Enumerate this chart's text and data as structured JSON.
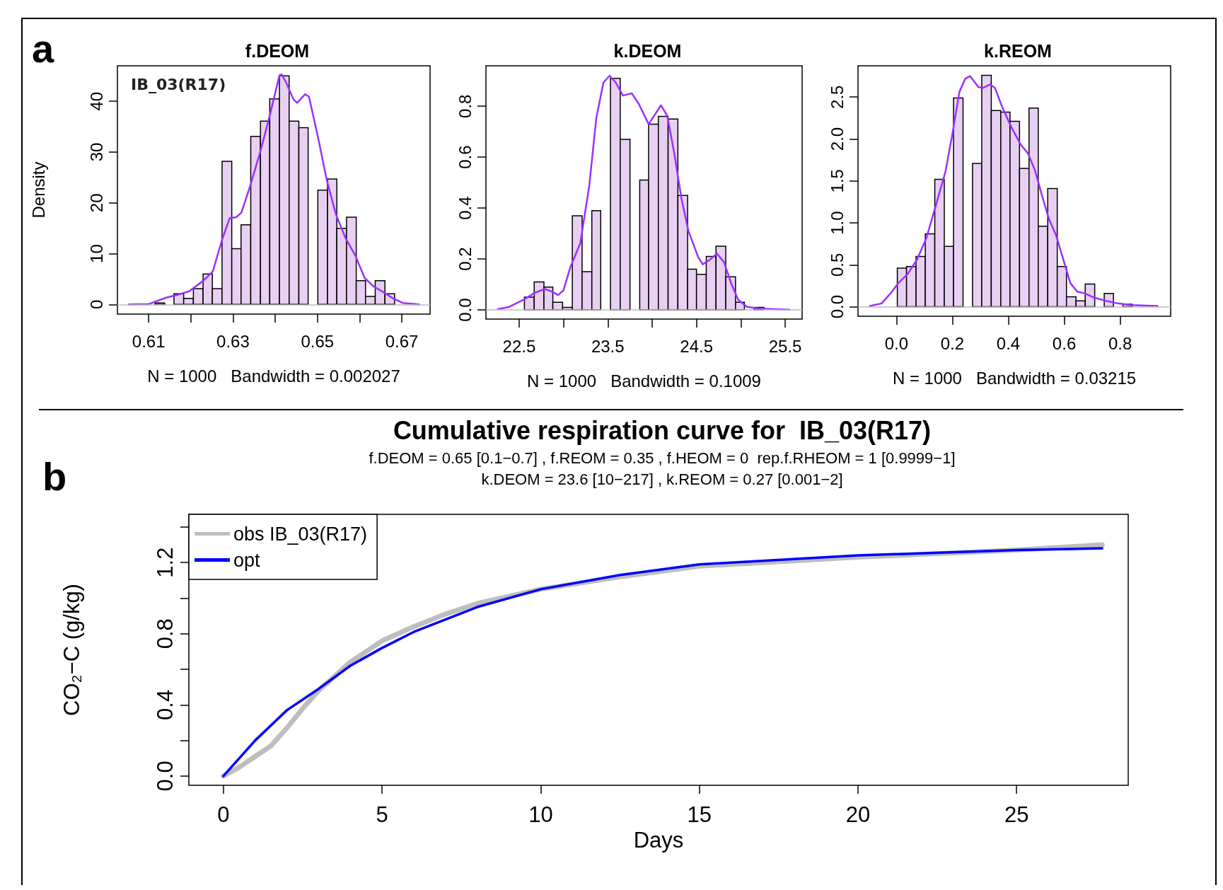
{
  "chart_data": [
    {
      "type": "histogram",
      "title": "f.DEOM",
      "xlabel": "N = 1000   Bandwidth = 0.002027",
      "ylabel": "Density",
      "annotations": [
        "a",
        "IB_03(R17)"
      ],
      "series": [
        {
          "type": "histogram",
          "color": "#e8d0f2",
          "bins": [
            0.6115,
            0.6138,
            0.616,
            0.6183,
            0.6206,
            0.6229,
            0.6251,
            0.6274,
            0.6297,
            0.6319,
            0.6342,
            0.6365,
            0.6387,
            0.641,
            0.6433,
            0.6456,
            0.6478,
            0.6501,
            0.6524,
            0.6546,
            0.6569,
            0.6592,
            0.6614,
            0.6637,
            0.666,
            0.6683
          ],
          "values": [
            0.3,
            0,
            2.1,
            1.2,
            3.1,
            6.0,
            3.1,
            28.2,
            11.0,
            15.7,
            33.1,
            36.1,
            40.5,
            45.0,
            36.1,
            34.8,
            null,
            22.5,
            24.7,
            15.0,
            17.2,
            4.7,
            1.6,
            4.7,
            2.1
          ]
        },
        {
          "type": "line",
          "color": "#9b30ff",
          "x": [
            0.6053,
            0.6101,
            0.614,
            0.6168,
            0.6196,
            0.623,
            0.6252,
            0.6275,
            0.6292,
            0.6308,
            0.632,
            0.6342,
            0.6365,
            0.6387,
            0.641,
            0.6415,
            0.6426,
            0.6443,
            0.6452,
            0.6471,
            0.648,
            0.65,
            0.6522,
            0.6544,
            0.6567,
            0.6589,
            0.6612,
            0.6634,
            0.6657,
            0.6679,
            0.6702,
            0.6741
          ],
          "values": [
            0,
            0.1,
            1.3,
            1.9,
            2.6,
            4.7,
            6.5,
            13.0,
            17.0,
            17.2,
            18.1,
            23.7,
            30.2,
            37.2,
            45.1,
            45.3,
            43.7,
            40.4,
            39.7,
            41.4,
            40.9,
            33.5,
            24.6,
            17.7,
            13.0,
            9.8,
            5.2,
            3.5,
            2.4,
            1.2,
            0.3,
            0
          ]
        }
      ],
      "xlim": [
        0.6026,
        0.6767
      ],
      "ylim": [
        -1.9,
        47.0
      ],
      "xticks": [
        0.61,
        {
          "value": 0.62,
          "label": null
        },
        0.63,
        {
          "value": 0.64,
          "label": null
        },
        0.65,
        {
          "value": 0.66,
          "label": null
        },
        0.67
      ],
      "yticks": [
        0,
        10,
        20,
        30,
        40
      ],
      "ref_lines": [
        {
          "axis": "y",
          "value": 0,
          "color": "#bebebe"
        }
      ],
      "marker": "none"
    },
    {
      "type": "histogram",
      "title": "k.DEOM",
      "xlabel": "N = 1000   Bandwidth = 0.1009",
      "series": [
        {
          "type": "histogram",
          "color": "#e8d0f2",
          "bins": [
            22.56,
            22.67,
            22.78,
            22.88,
            22.99,
            23.1,
            23.21,
            23.32,
            23.42,
            23.53,
            23.64,
            23.75,
            23.86,
            23.96,
            24.07,
            24.18,
            24.29,
            24.4,
            24.5,
            24.61,
            24.72,
            24.83,
            24.94,
            25.04,
            25.15,
            25.26
          ],
          "values": [
            0.05,
            0.11,
            0.09,
            0.03,
            0.01,
            0.37,
            0.15,
            0.39,
            null,
            0.91,
            0.67,
            null,
            0.51,
            0.73,
            0.76,
            0.75,
            0.45,
            0.16,
            0.14,
            0.21,
            0.25,
            0.13,
            0.03,
            0,
            0.01
          ]
        },
        {
          "type": "line",
          "color": "#9b30ff",
          "x": [
            22.26,
            22.39,
            22.55,
            22.68,
            22.79,
            22.87,
            22.94,
            23.0,
            23.08,
            23.19,
            23.29,
            23.37,
            23.45,
            23.52,
            23.59,
            23.67,
            23.77,
            23.85,
            23.96,
            24.04,
            24.1,
            24.17,
            24.25,
            24.33,
            24.41,
            24.52,
            24.57,
            24.65,
            24.73,
            24.81,
            24.89,
            24.97,
            25.07,
            25.21,
            25.55
          ],
          "values": [
            0.003,
            0.012,
            0.04,
            0.068,
            0.082,
            0.072,
            0.058,
            0.077,
            0.17,
            0.262,
            0.485,
            0.753,
            0.893,
            0.92,
            0.893,
            0.842,
            0.851,
            0.809,
            0.73,
            0.772,
            0.804,
            0.763,
            0.614,
            0.438,
            0.309,
            0.207,
            0.179,
            0.197,
            0.221,
            0.188,
            0.105,
            0.04,
            0.012,
            0.005,
            0.001
          ]
        }
      ],
      "xlim": [
        22.126,
        25.691
      ],
      "ylim": [
        -0.036,
        0.959
      ],
      "xticks": [
        22.5,
        {
          "value": 23.0,
          "label": null
        },
        23.5,
        {
          "value": 24.0,
          "label": null
        },
        24.5,
        {
          "value": 25.0,
          "label": null
        },
        25.5
      ],
      "yticks": [
        {
          "value": 0,
          "label": "0.0"
        },
        0.2,
        0.4,
        0.6,
        0.8
      ],
      "ref_lines": [
        {
          "axis": "y",
          "value": 0,
          "color": "#bebebe"
        }
      ],
      "marker": "none"
    },
    {
      "type": "histogram",
      "title": "k.REOM",
      "xlabel": "N = 1000   Bandwidth = 0.03215",
      "series": [
        {
          "type": "histogram",
          "color": "#e8d0f2",
          "bins": [
            0.003,
            0.036,
            0.07,
            0.103,
            0.137,
            0.171,
            0.204,
            0.238,
            0.272,
            0.305,
            0.339,
            0.373,
            0.406,
            0.44,
            0.474,
            0.507,
            0.541,
            0.575,
            0.608,
            0.642,
            0.675,
            0.709,
            0.743,
            0.776,
            0.81,
            0.843
          ],
          "values": [
            0.46,
            0.48,
            0.6,
            0.87,
            1.52,
            0.72,
            2.49,
            null,
            1.71,
            2.76,
            2.34,
            2.32,
            2.21,
            1.65,
            2.37,
            0.96,
            1.41,
            0.48,
            0.12,
            0.07,
            0.27,
            0,
            0.16,
            0,
            0.03
          ]
        },
        {
          "type": "line",
          "color": "#9b30ff",
          "x": [
            -0.095,
            -0.053,
            -0.019,
            0.006,
            0.04,
            0.073,
            0.107,
            0.141,
            0.175,
            0.2,
            0.225,
            0.246,
            0.263,
            0.293,
            0.31,
            0.335,
            0.352,
            0.377,
            0.411,
            0.445,
            0.47,
            0.495,
            0.521,
            0.546,
            0.571,
            0.597,
            0.622,
            0.647,
            0.673,
            0.706,
            0.749,
            0.791,
            0.841,
            0.934
          ],
          "values": [
            0.01,
            0.04,
            0.17,
            0.28,
            0.39,
            0.56,
            0.82,
            1.21,
            1.61,
            2.06,
            2.56,
            2.72,
            2.75,
            2.62,
            2.61,
            2.65,
            2.61,
            2.39,
            2.14,
            1.93,
            1.83,
            1.63,
            1.32,
            1.04,
            0.85,
            0.56,
            0.28,
            0.18,
            0.16,
            0.11,
            0.07,
            0.04,
            0.02,
            0.01
          ]
        }
      ],
      "xlim": [
        -0.1376,
        0.9806
      ],
      "ylim": [
        -0.113,
        2.873
      ],
      "xticks": [
        {
          "value": 0,
          "label": "0.0"
        },
        0.2,
        0.4,
        0.6,
        0.8
      ],
      "yticks": [
        {
          "value": 0,
          "label": "0.0"
        },
        0.5,
        {
          "value": 1,
          "label": "1.0"
        },
        1.5,
        {
          "value": 2,
          "label": "2.0"
        },
        2.5
      ],
      "ref_lines": [
        {
          "axis": "y",
          "value": 0,
          "color": "#bebebe"
        }
      ],
      "marker": "none"
    },
    {
      "type": "line",
      "title": "Cumulative respiration curve for  IB_03(R17)",
      "subtitle": "f.DEOM = 0.65 [0.1−0.7] , f.REOM = 0.35 , f.HEOM = 0  rep.f.RHEOM = 1 [0.9999−1]\nk.DEOM = 23.6 [10−217] , k.REOM = 0.27 [0.001−2]",
      "xlabel": "Days",
      "ylabel": "CO₂−C (g/kg)",
      "annotations": [
        "b"
      ],
      "series": [
        {
          "name": "obs IB_03(R17)",
          "color": "#bebebe",
          "x": [
            0,
            0.5,
            1,
            1.5,
            2,
            2.5,
            3,
            3.5,
            4,
            5,
            6,
            7,
            8,
            10,
            12.5,
            15,
            20,
            25,
            27.7
          ],
          "values": [
            0,
            0.05,
            0.11,
            0.17,
            0.27,
            0.38,
            0.48,
            0.56,
            0.64,
            0.76,
            0.84,
            0.91,
            0.97,
            1.05,
            1.12,
            1.18,
            1.23,
            1.27,
            1.3
          ]
        },
        {
          "name": "opt",
          "color": "#0000ff",
          "x": [
            0,
            1,
            2,
            3,
            4,
            5,
            6,
            7,
            8,
            10,
            12.5,
            15,
            20,
            25,
            27.7
          ],
          "values": [
            0,
            0.2,
            0.37,
            0.49,
            0.62,
            0.72,
            0.81,
            0.88,
            0.95,
            1.05,
            1.13,
            1.19,
            1.24,
            1.27,
            1.28
          ]
        }
      ],
      "xlim": [
        -1.09,
        28.52
      ],
      "ylim": [
        -0.052,
        1.471
      ],
      "xticks": [
        0,
        5,
        10,
        15,
        20,
        25
      ],
      "yticks": [
        {
          "value": 0,
          "label": "0.0"
        },
        {
          "value": 0.2,
          "label": null
        },
        0.4,
        {
          "value": 0.6,
          "label": null
        },
        0.8,
        {
          "value": 1.0,
          "label": null
        },
        1.2,
        {
          "value": 1.4,
          "label": null
        }
      ],
      "legend": "top left",
      "marker": "none"
    }
  ]
}
